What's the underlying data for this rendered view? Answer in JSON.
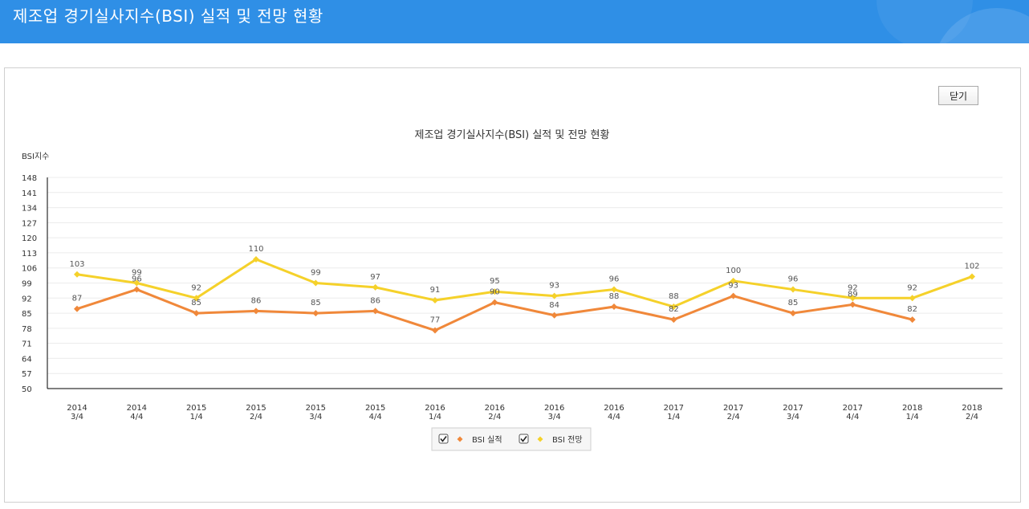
{
  "page": {
    "title": "제조업 경기실사지수(BSI) 실적 및 전망 현황"
  },
  "buttons": {
    "close_label": "닫기"
  },
  "chart_data": {
    "type": "line",
    "title": "제조업 경기실사지수(BSI) 실적 및 전망 현황",
    "ylabel": "BSI지수",
    "xlabel": "",
    "ylim": [
      50,
      148
    ],
    "yticks": [
      50,
      57,
      64,
      71,
      78,
      85,
      92,
      99,
      106,
      113,
      120,
      127,
      134,
      141,
      148
    ],
    "categories": [
      [
        "2014",
        "3/4"
      ],
      [
        "2014",
        "4/4"
      ],
      [
        "2015",
        "1/4"
      ],
      [
        "2015",
        "2/4"
      ],
      [
        "2015",
        "3/4"
      ],
      [
        "2015",
        "4/4"
      ],
      [
        "2016",
        "1/4"
      ],
      [
        "2016",
        "2/4"
      ],
      [
        "2016",
        "3/4"
      ],
      [
        "2016",
        "4/4"
      ],
      [
        "2017",
        "1/4"
      ],
      [
        "2017",
        "2/4"
      ],
      [
        "2017",
        "3/4"
      ],
      [
        "2017",
        "4/4"
      ],
      [
        "2018",
        "1/4"
      ],
      [
        "2018",
        "2/4"
      ]
    ],
    "series": [
      {
        "name": "BSI 실적",
        "color": "#f0883a",
        "checked": true,
        "values": [
          87,
          96,
          85,
          86,
          85,
          86,
          77,
          90,
          84,
          88,
          82,
          93,
          85,
          89,
          82,
          null
        ]
      },
      {
        "name": "BSI 전망",
        "color": "#f5d12a",
        "checked": true,
        "values": [
          103,
          99,
          92,
          110,
          99,
          97,
          91,
          95,
          93,
          96,
          88,
          100,
          96,
          92,
          92,
          102
        ]
      }
    ],
    "grid": true,
    "legend_position": "bottom-center"
  }
}
